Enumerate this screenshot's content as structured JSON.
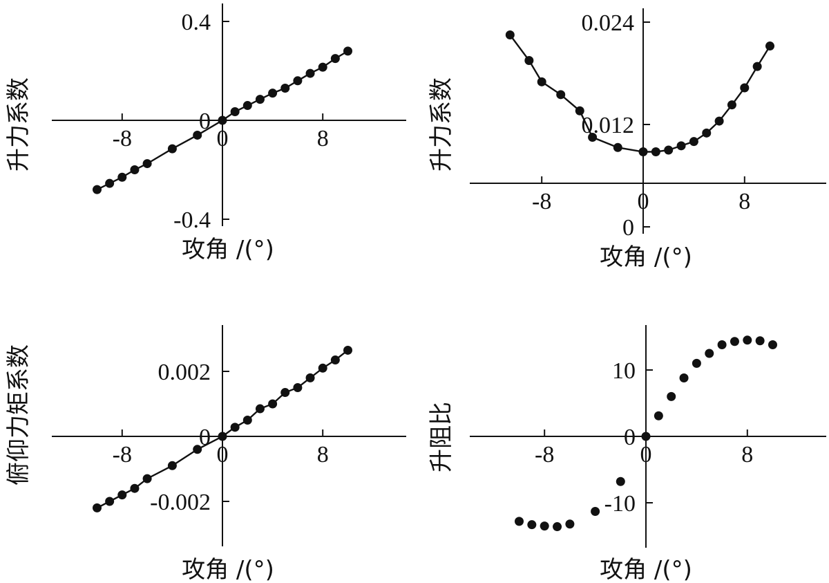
{
  "chart_data": [
    {
      "type": "scatter",
      "xlabel": "攻角 /(°)",
      "ylabel": "升力系数",
      "x_ticks": [
        "-8",
        "0",
        "8"
      ],
      "y_ticks": [
        "0.4",
        "0",
        "-0.4"
      ],
      "ylim": [
        -0.42,
        0.4
      ],
      "xlim": [
        -10.5,
        14.5
      ],
      "fit_line": true,
      "series": [
        {
          "x": [
            -10,
            -9,
            -8,
            -7,
            -6,
            -4,
            -2,
            0,
            1,
            2,
            3,
            4,
            5,
            6,
            7,
            8,
            9,
            10
          ],
          "y": [
            -0.28,
            -0.255,
            -0.23,
            -0.2,
            -0.175,
            -0.115,
            -0.06,
            0.0,
            0.035,
            0.06,
            0.085,
            0.11,
            0.13,
            0.16,
            0.19,
            0.215,
            0.25,
            0.28
          ]
        }
      ]
    },
    {
      "type": "scatter",
      "xlabel": "攻角 /(°)",
      "ylabel": "升力系数",
      "x_ticks": [
        "-8",
        "0",
        "8"
      ],
      "y_ticks": [
        "0.024",
        "0.012",
        "0"
      ],
      "ylim": [
        -0.001,
        0.025
      ],
      "xlim": [
        -12,
        14.5
      ],
      "fit_line": true,
      "series": [
        {
          "x": [
            -10.5,
            -9,
            -8,
            -6.5,
            -5,
            -4,
            -2,
            0,
            1,
            2,
            3,
            4,
            5,
            6,
            7,
            8,
            9,
            10
          ],
          "y": [
            0.0225,
            0.0195,
            0.017,
            0.0155,
            0.0136,
            0.0105,
            0.0093,
            0.0088,
            0.0088,
            0.009,
            0.0095,
            0.01,
            0.011,
            0.0124,
            0.0143,
            0.0163,
            0.0188,
            0.0212
          ]
        }
      ]
    },
    {
      "type": "scatter",
      "xlabel": "攻角 /(°)",
      "ylabel": "俯仰力矩系数",
      "x_ticks": [
        "-8",
        "0",
        "8"
      ],
      "y_ticks": [
        "0.002",
        "0",
        "-0.002"
      ],
      "ylim": [
        -0.0034,
        0.0034
      ],
      "xlim": [
        -10.5,
        14.5
      ],
      "fit_line": true,
      "series": [
        {
          "x": [
            -10,
            -9,
            -8,
            -7,
            -6,
            -4,
            -2,
            0,
            1,
            2,
            3,
            4,
            5,
            6,
            7,
            8,
            9,
            10
          ],
          "y": [
            -0.0022,
            -0.002,
            -0.0018,
            -0.0016,
            -0.0013,
            -0.0009,
            -0.0004,
            0.0,
            0.00028,
            0.0005,
            0.00085,
            0.001,
            0.00135,
            0.0015,
            0.0018,
            0.0021,
            0.00235,
            0.00265
          ]
        }
      ]
    },
    {
      "type": "scatter",
      "xlabel": "攻角 /(°)",
      "ylabel": "升阻比",
      "x_ticks": [
        "-8",
        "0",
        "8"
      ],
      "y_ticks": [
        "10",
        "0",
        "-10"
      ],
      "ylim": [
        -16,
        17
      ],
      "xlim": [
        -10.5,
        14.5
      ],
      "fit_line": false,
      "series": [
        {
          "x": [
            -10,
            -9,
            -8,
            -7,
            -6,
            -4,
            -2,
            0,
            1,
            2,
            3,
            4,
            5,
            6,
            7,
            8,
            9,
            10
          ],
          "y": [
            -12.8,
            -13.3,
            -13.5,
            -13.6,
            -13.2,
            -11.3,
            -6.8,
            0.0,
            3.1,
            6.0,
            8.8,
            11.0,
            12.5,
            13.8,
            14.3,
            14.5,
            14.4,
            13.8
          ]
        }
      ]
    }
  ]
}
